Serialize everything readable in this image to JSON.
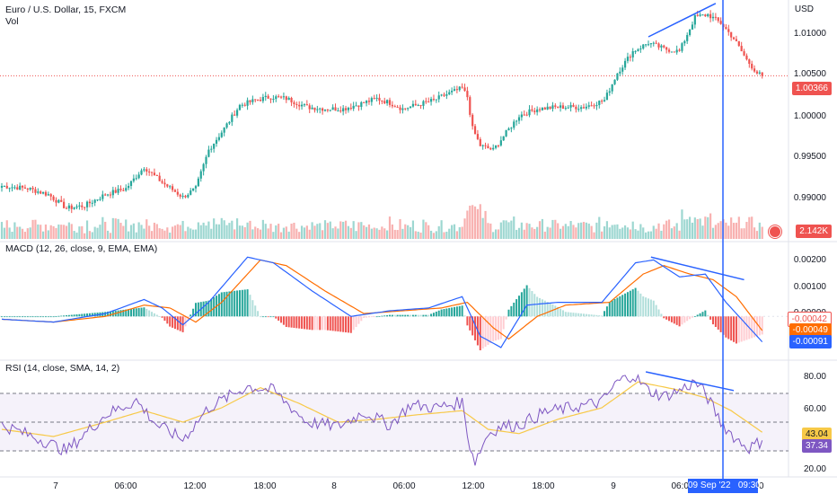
{
  "header": {
    "symbol_title": "Euro / U.S. Dollar, 15, FXCM",
    "volume_label": "Vol",
    "currency": "USD"
  },
  "price_axis": {
    "ticks": [
      "1.01000",
      "1.00500",
      "1.00000",
      "0.99500",
      "0.99000"
    ],
    "last_price": "1.00366",
    "last_volume": "2.142K"
  },
  "macd": {
    "title": "MACD (12, 26, close, 9, EMA, EMA)",
    "ticks": [
      "0.00200",
      "0.00100",
      "0.00000"
    ],
    "tag_hist": "-0.00042",
    "tag_signal": "-0.00049",
    "tag_macd": "-0.00091"
  },
  "rsi": {
    "title": "RSI (14, close, SMA, 14, 2)",
    "ticks": [
      "80.00",
      "60.00",
      "20.00"
    ],
    "tag_ma": "43.04",
    "tag_rsi": "37.34"
  },
  "time_axis": {
    "labels": [
      "7",
      "06:00",
      "12:00",
      "18:00",
      "8",
      "06:00",
      "12:00",
      "18:00",
      "9",
      "06:00",
      "12:00",
      "18:00"
    ],
    "cursor_label": "09 Sep '22   09:30"
  },
  "colors": {
    "up": "#26a69a",
    "down": "#ef5350",
    "macd_line": "#2962ff",
    "signal_line": "#ff6d00",
    "rsi_line": "#7e57c2",
    "rsi_ma": "#f7c948",
    "trendline": "#2962ff"
  },
  "chart_data": [
    {
      "type": "candlestick",
      "title": "Euro / U.S. Dollar, 15, FXCM",
      "ylabel": "USD",
      "ylim": [
        0.9865,
        1.0125
      ],
      "time_axis": [
        "7",
        "06:00",
        "12:00",
        "18:00",
        "8",
        "06:00",
        "12:00",
        "18:00",
        "9",
        "06:00",
        "12:00"
      ],
      "close_anchors": [
        [
          0,
          0.9908
        ],
        [
          10,
          0.9905
        ],
        [
          18,
          0.9898
        ],
        [
          25,
          0.9882
        ],
        [
          32,
          0.9885
        ],
        [
          40,
          0.9898
        ],
        [
          48,
          0.9905
        ],
        [
          55,
          0.993
        ],
        [
          62,
          0.9912
        ],
        [
          70,
          0.9895
        ],
        [
          75,
          0.9905
        ],
        [
          80,
          0.995
        ],
        [
          86,
          0.9975
        ],
        [
          92,
          1.0002
        ],
        [
          98,
          1.0008
        ],
        [
          104,
          1.0012
        ],
        [
          110,
          1.001
        ],
        [
          118,
          1.0
        ],
        [
          125,
          0.9998
        ],
        [
          132,
          0.9998
        ],
        [
          140,
          1.0005
        ],
        [
          145,
          1.001
        ],
        [
          150,
          1.0005
        ],
        [
          155,
          0.9998
        ],
        [
          160,
          1.0002
        ],
        [
          167,
          1.0008
        ],
        [
          172,
          1.0015
        ],
        [
          178,
          1.0022
        ],
        [
          180,
          1.0012
        ],
        [
          182,
          0.9975
        ],
        [
          185,
          0.9955
        ],
        [
          190,
          0.995
        ],
        [
          195,
          0.997
        ],
        [
          200,
          0.999
        ],
        [
          207,
          0.9998
        ],
        [
          215,
          1.0
        ],
        [
          225,
          1.0
        ],
        [
          233,
          1.0008
        ],
        [
          238,
          1.004
        ],
        [
          244,
          1.0065
        ],
        [
          250,
          1.0075
        ],
        [
          256,
          1.0068
        ],
        [
          262,
          1.0065
        ],
        [
          268,
          1.0105
        ],
        [
          273,
          1.0108
        ],
        [
          278,
          1.0098
        ],
        [
          283,
          1.008
        ],
        [
          288,
          1.0055
        ],
        [
          292,
          1.004
        ],
        [
          294,
          1.0036
        ]
      ],
      "last_price": 1.00366,
      "volume_last": "2.142K"
    },
    {
      "type": "line",
      "title": "MACD (12, 26, close, 9, EMA, EMA)",
      "ylim": [
        -0.0012,
        0.0023
      ],
      "series": [
        {
          "name": "MACD",
          "anchors": [
            [
              0,
              -0.0001
            ],
            [
              20,
              -0.0002
            ],
            [
              40,
              0.0001
            ],
            [
              55,
              0.0006
            ],
            [
              62,
              0.0003
            ],
            [
              70,
              -0.0003
            ],
            [
              80,
              0.0005
            ],
            [
              95,
              0.0021
            ],
            [
              105,
              0.0019
            ],
            [
              120,
              0.0009
            ],
            [
              135,
              0.0
            ],
            [
              150,
              0.0002
            ],
            [
              165,
              0.0003
            ],
            [
              178,
              0.0007
            ],
            [
              185,
              -0.0007
            ],
            [
              193,
              -0.0011
            ],
            [
              203,
              0.0004
            ],
            [
              215,
              0.0005
            ],
            [
              232,
              0.0005
            ],
            [
              245,
              0.0019
            ],
            [
              252,
              0.002
            ],
            [
              262,
              0.0014
            ],
            [
              272,
              0.0015
            ],
            [
              280,
              0.0005
            ],
            [
              294,
              -0.0009
            ]
          ]
        },
        {
          "name": "Signal",
          "anchors": [
            [
              0,
              -0.0001
            ],
            [
              20,
              -0.0002
            ],
            [
              40,
              0.0
            ],
            [
              55,
              0.0004
            ],
            [
              65,
              0.0003
            ],
            [
              75,
              -0.0002
            ],
            [
              85,
              0.0005
            ],
            [
              100,
              0.002
            ],
            [
              110,
              0.0018
            ],
            [
              125,
              0.0009
            ],
            [
              140,
              0.0001
            ],
            [
              155,
              0.0002
            ],
            [
              170,
              0.0003
            ],
            [
              180,
              0.0005
            ],
            [
              190,
              -0.0004
            ],
            [
              196,
              -0.0008
            ],
            [
              207,
              0.0
            ],
            [
              218,
              0.0004
            ],
            [
              235,
              0.0005
            ],
            [
              248,
              0.0015
            ],
            [
              256,
              0.0018
            ],
            [
              266,
              0.0015
            ],
            [
              275,
              0.0013
            ],
            [
              284,
              0.0007
            ],
            [
              294,
              -0.0005
            ]
          ]
        }
      ],
      "histogram": "MACD minus Signal",
      "last_values": {
        "histogram": -0.00042,
        "signal": -0.00049,
        "macd": -0.00091
      }
    },
    {
      "type": "line",
      "title": "RSI (14, close, SMA, 14, 2)",
      "ylim": [
        15,
        90
      ],
      "bands": [
        30,
        50,
        70
      ],
      "series": [
        {
          "name": "RSI",
          "anchors": [
            [
              0,
              48
            ],
            [
              15,
              38
            ],
            [
              25,
              30
            ],
            [
              40,
              55
            ],
            [
              52,
              65
            ],
            [
              60,
              48
            ],
            [
              70,
              38
            ],
            [
              80,
              60
            ],
            [
              95,
              75
            ],
            [
              105,
              72
            ],
            [
              118,
              50
            ],
            [
              130,
              47
            ],
            [
              140,
              57
            ],
            [
              150,
              48
            ],
            [
              158,
              62
            ],
            [
              168,
              60
            ],
            [
              178,
              64
            ],
            [
              181,
              33
            ],
            [
              183,
              23
            ],
            [
              188,
              42
            ],
            [
              193,
              47
            ],
            [
              200,
              48
            ],
            [
              210,
              57
            ],
            [
              220,
              60
            ],
            [
              232,
              64
            ],
            [
              238,
              78
            ],
            [
              244,
              83
            ],
            [
              250,
              72
            ],
            [
              256,
              68
            ],
            [
              262,
              72
            ],
            [
              268,
              78
            ],
            [
              272,
              70
            ],
            [
              278,
              50
            ],
            [
              284,
              38
            ],
            [
              289,
              32
            ],
            [
              294,
              37
            ]
          ]
        },
        {
          "name": "RSI MA",
          "anchors": [
            [
              0,
              45
            ],
            [
              20,
              40
            ],
            [
              40,
              50
            ],
            [
              55,
              58
            ],
            [
              70,
              50
            ],
            [
              85,
              60
            ],
            [
              100,
              74
            ],
            [
              115,
              63
            ],
            [
              130,
              50
            ],
            [
              145,
              52
            ],
            [
              160,
              55
            ],
            [
              178,
              58
            ],
            [
              188,
              45
            ],
            [
              200,
              42
            ],
            [
              215,
              52
            ],
            [
              232,
              60
            ],
            [
              246,
              78
            ],
            [
              260,
              73
            ],
            [
              272,
              67
            ],
            [
              282,
              58
            ],
            [
              294,
              43
            ]
          ]
        }
      ],
      "last_values": {
        "rsi": 37.34,
        "ma": 43.04
      }
    }
  ]
}
